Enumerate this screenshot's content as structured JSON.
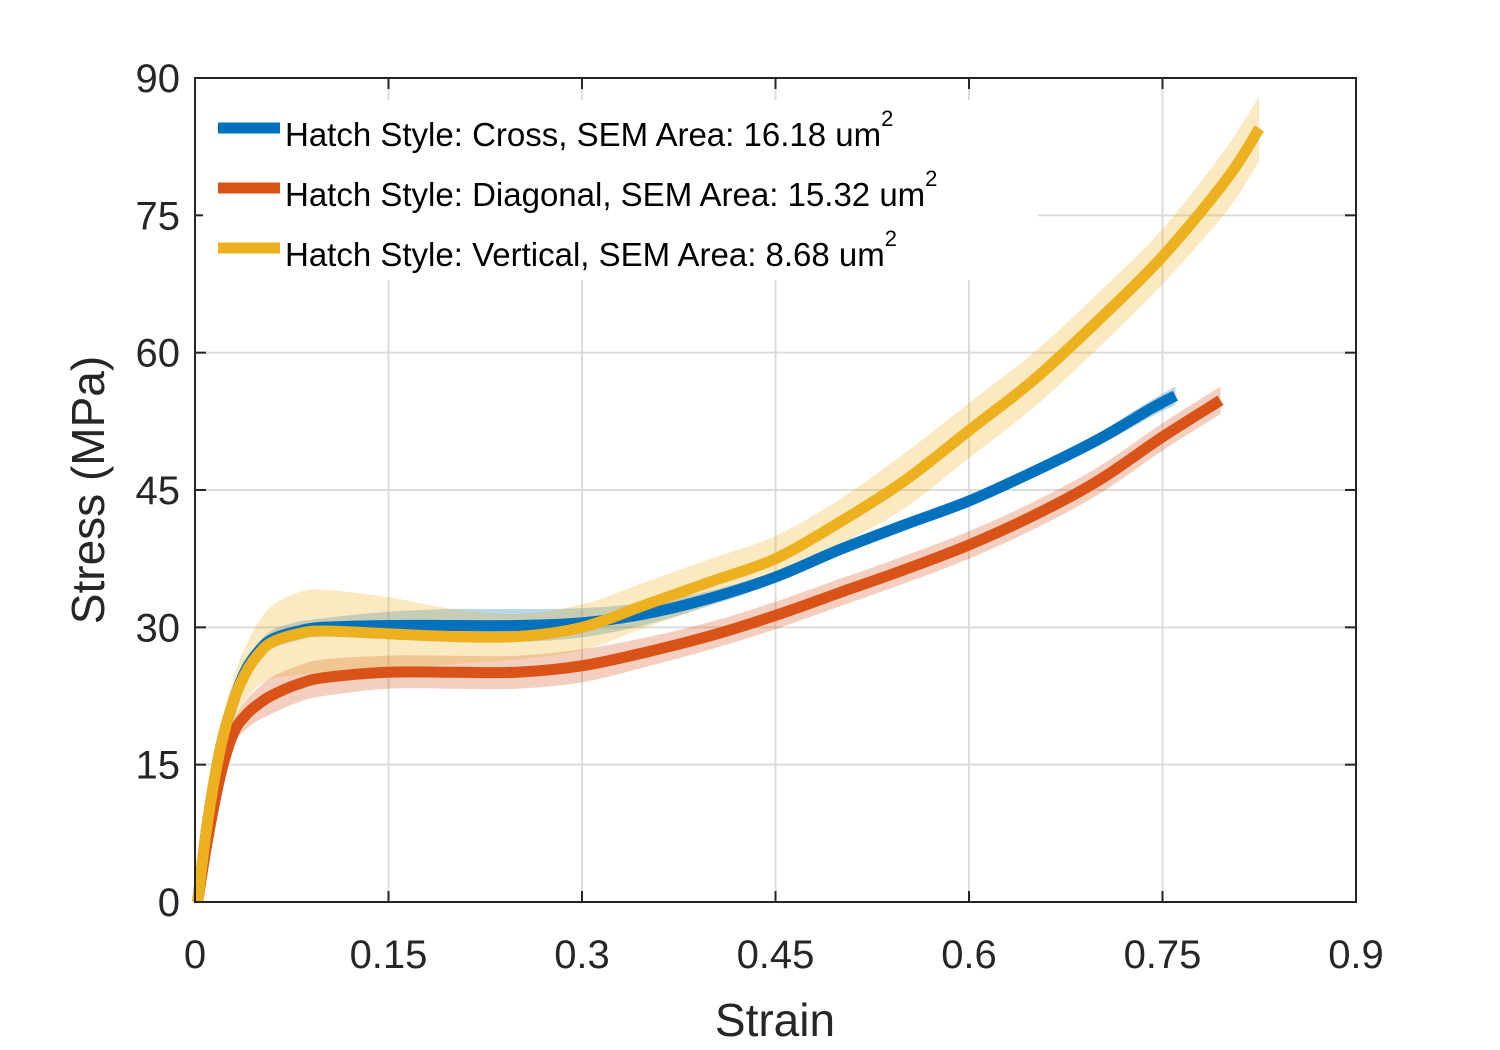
{
  "chart_data": {
    "type": "line",
    "title": "",
    "xlabel": "Strain",
    "ylabel": "Stress (MPa)",
    "xlim": [
      0,
      0.9
    ],
    "ylim": [
      0,
      90
    ],
    "xticks": [
      0,
      0.15,
      0.3,
      0.45,
      0.6,
      0.75,
      0.9
    ],
    "xtick_labels": [
      "0",
      "0.15",
      "0.3",
      "0.45",
      "0.6",
      "0.75",
      "0.9"
    ],
    "yticks": [
      0,
      15,
      30,
      45,
      60,
      75,
      90
    ],
    "ytick_labels": [
      "0",
      "15",
      "30",
      "45",
      "60",
      "75",
      "90"
    ],
    "grid": true,
    "legend_position": "top-left",
    "series": [
      {
        "name": "Cross",
        "legend_label": "Hatch Style: Cross, SEM Area: 16.18 um",
        "legend_sup": "2",
        "color": "#0072BD",
        "band_color": "#0072BD",
        "x": [
          0.002,
          0.01,
          0.02,
          0.03,
          0.04,
          0.05,
          0.06,
          0.08,
          0.1,
          0.15,
          0.2,
          0.25,
          0.3,
          0.35,
          0.4,
          0.45,
          0.5,
          0.55,
          0.6,
          0.65,
          0.7,
          0.74,
          0.76
        ],
        "y": [
          0,
          9,
          17,
          22,
          25.5,
          27.5,
          28.7,
          29.6,
          30,
          30.2,
          30.2,
          30.2,
          30.5,
          31.5,
          33.2,
          35.5,
          38.5,
          41.2,
          43.8,
          47,
          50.5,
          53.8,
          55.3
        ],
        "band": [
          0.5,
          0.5,
          0.6,
          0.7,
          0.8,
          0.9,
          1,
          1,
          1,
          1.5,
          1.8,
          1.8,
          1.6,
          1.2,
          0.8,
          0.6,
          0.5,
          0.5,
          0.5,
          0.6,
          0.7,
          0.9,
          1
        ]
      },
      {
        "name": "Diagonal",
        "legend_label": "Hatch Style: Diagonal, SEM Area: 15.32 um",
        "legend_sup": "2",
        "color": "#D95319",
        "band_color": "#D95319",
        "x": [
          0.002,
          0.01,
          0.02,
          0.03,
          0.04,
          0.05,
          0.06,
          0.08,
          0.1,
          0.15,
          0.2,
          0.25,
          0.3,
          0.35,
          0.4,
          0.45,
          0.5,
          0.55,
          0.6,
          0.65,
          0.7,
          0.75,
          0.795
        ],
        "y": [
          0,
          7,
          14,
          18.5,
          20.5,
          21.7,
          22.6,
          23.8,
          24.5,
          25.1,
          25.1,
          25.1,
          25.8,
          27.3,
          29.1,
          31.3,
          33.8,
          36.3,
          39,
          42.2,
          46,
          50.8,
          54.8
        ],
        "band": [
          0.5,
          0.8,
          1,
          1.3,
          1.6,
          1.8,
          2,
          2,
          2,
          1.8,
          1.8,
          1.8,
          1.8,
          1.6,
          1.5,
          1.5,
          1.5,
          1.5,
          1.5,
          1.5,
          1.5,
          1.5,
          1.5
        ]
      },
      {
        "name": "Vertical",
        "legend_label": "Hatch Style: Vertical, SEM Area: 8.68 um",
        "legend_sup": "2",
        "color": "#EDB120",
        "band_color": "#EDB120",
        "x": [
          0.002,
          0.01,
          0.02,
          0.03,
          0.04,
          0.05,
          0.06,
          0.08,
          0.1,
          0.15,
          0.2,
          0.25,
          0.3,
          0.35,
          0.4,
          0.45,
          0.5,
          0.55,
          0.6,
          0.65,
          0.7,
          0.75,
          0.8,
          0.825
        ],
        "y": [
          0,
          9,
          17,
          22,
          25.2,
          27.2,
          28.4,
          29.3,
          29.6,
          29.3,
          29,
          29,
          30,
          32.5,
          35,
          37.5,
          41.5,
          46,
          51.5,
          57,
          63.5,
          70.5,
          79,
          84.5
        ],
        "band": [
          1,
          1.5,
          2,
          2.5,
          3,
          3.5,
          4,
          4.5,
          4.5,
          4,
          3,
          2.5,
          2.5,
          2.5,
          2.5,
          2.5,
          2.5,
          3,
          3,
          3,
          3,
          3,
          3.5,
          3.5
        ]
      }
    ]
  }
}
